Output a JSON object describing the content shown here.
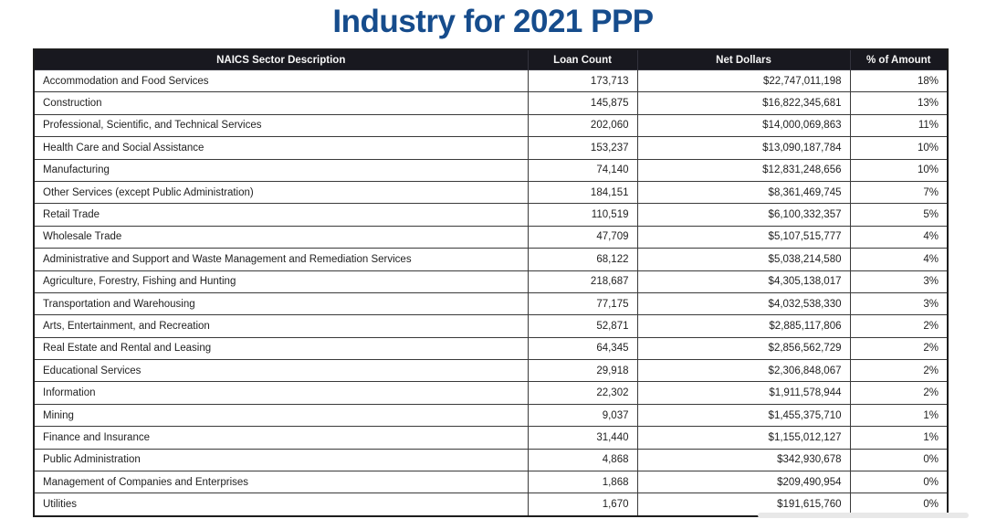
{
  "chart_data": {
    "type": "table",
    "title": "Industry for 2021 PPP",
    "columns": [
      "NAICS Sector Description",
      "Loan Count",
      "Net Dollars",
      "% of Amount"
    ],
    "rows": [
      [
        "Accommodation and Food Services",
        "173,713",
        "$22,747,011,198",
        "18%"
      ],
      [
        "Construction",
        "145,875",
        "$16,822,345,681",
        "13%"
      ],
      [
        "Professional, Scientific, and Technical Services",
        "202,060",
        "$14,000,069,863",
        "11%"
      ],
      [
        "Health Care and Social Assistance",
        "153,237",
        "$13,090,187,784",
        "10%"
      ],
      [
        "Manufacturing",
        "74,140",
        "$12,831,248,656",
        "10%"
      ],
      [
        "Other Services (except Public Administration)",
        "184,151",
        "$8,361,469,745",
        "7%"
      ],
      [
        "Retail Trade",
        "110,519",
        "$6,100,332,357",
        "5%"
      ],
      [
        "Wholesale Trade",
        "47,709",
        "$5,107,515,777",
        "4%"
      ],
      [
        "Administrative and Support and Waste Management and Remediation Services",
        "68,122",
        "$5,038,214,580",
        "4%"
      ],
      [
        "Agriculture, Forestry, Fishing and Hunting",
        "218,687",
        "$4,305,138,017",
        "3%"
      ],
      [
        "Transportation and Warehousing",
        "77,175",
        "$4,032,538,330",
        "3%"
      ],
      [
        "Arts, Entertainment, and Recreation",
        "52,871",
        "$2,885,117,806",
        "2%"
      ],
      [
        "Real Estate and Rental and Leasing",
        "64,345",
        "$2,856,562,729",
        "2%"
      ],
      [
        "Educational Services",
        "29,918",
        "$2,306,848,067",
        "2%"
      ],
      [
        "Information",
        "22,302",
        "$1,911,578,944",
        "2%"
      ],
      [
        "Mining",
        "9,037",
        "$1,455,375,710",
        "1%"
      ],
      [
        "Finance and Insurance",
        "31,440",
        "$1,155,012,127",
        "1%"
      ],
      [
        "Public Administration",
        "4,868",
        "$342,930,678",
        "0%"
      ],
      [
        "Management of Companies and Enterprises",
        "1,868",
        "$209,490,954",
        "0%"
      ],
      [
        "Utilities",
        "1,670",
        "$191,615,760",
        "0%"
      ]
    ],
    "layout_hints": {
      "header_style": "dark bar with white bold centered labels",
      "column_alignment": [
        "left",
        "right",
        "right",
        "right"
      ],
      "grid": "on"
    }
  },
  "colors": {
    "title": "#164c8c",
    "header_bg": "#18181f",
    "header_text": "#f7f7f7",
    "cell_border": "#3a3a3a",
    "page_bg": "#ffffff",
    "bottom_bar": "#e8e8e8"
  }
}
